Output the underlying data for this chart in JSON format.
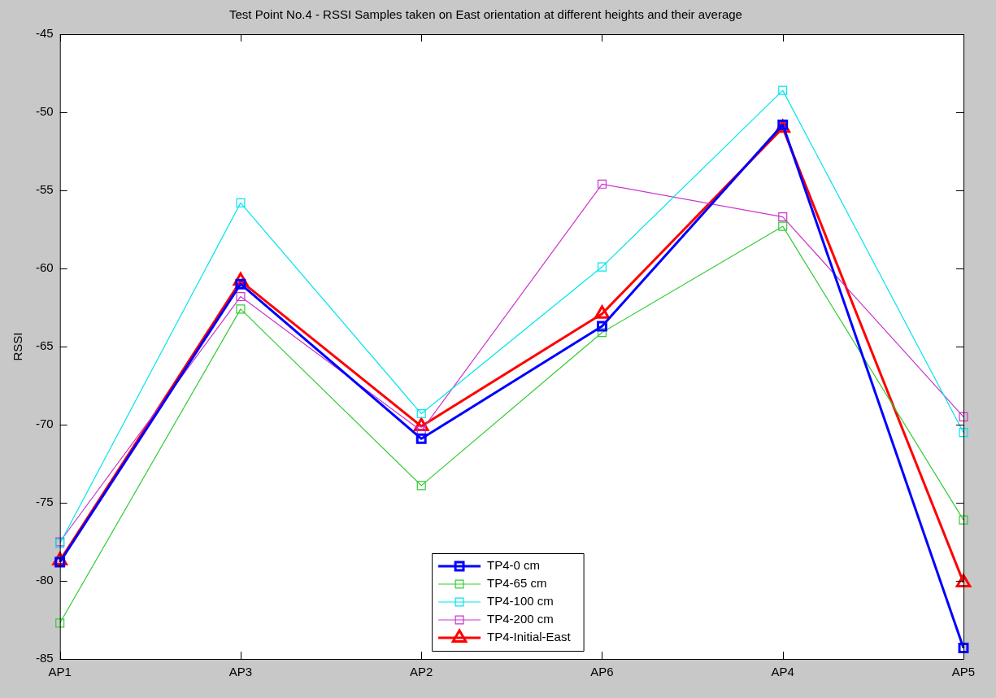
{
  "chart_data": {
    "type": "line",
    "title": "Test Point No.4 - RSSI Samples taken on East orientation at different heights and their average",
    "ylabel": "RSSI",
    "categories": [
      "AP1",
      "AP3",
      "AP2",
      "AP6",
      "AP4",
      "AP5"
    ],
    "ylim": [
      -85,
      -45
    ],
    "yticks": [
      -85,
      -80,
      -75,
      -70,
      -65,
      -60,
      -55,
      -50,
      -45
    ],
    "grid": false,
    "legend": "bottom",
    "line_style": "solid",
    "series": [
      {
        "name": "TP4-0 cm",
        "color": "#0000ff",
        "marker": "square",
        "values": [
          -78.8,
          -61.0,
          -70.9,
          -63.7,
          -50.8,
          -84.3
        ]
      },
      {
        "name": "TP4-65 cm",
        "color": "#33cc33",
        "marker": "square",
        "values": [
          -82.7,
          -62.6,
          -73.9,
          -64.1,
          -57.3,
          -76.1
        ]
      },
      {
        "name": "TP4-100 cm",
        "color": "#00e5ee",
        "marker": "square",
        "values": [
          -77.6,
          -55.8,
          -69.3,
          -59.9,
          -48.6,
          -70.5
        ]
      },
      {
        "name": "TP4-200 cm",
        "color": "#cc33cc",
        "marker": "square",
        "values": [
          -77.5,
          -61.8,
          -70.4,
          -54.6,
          -56.7,
          -69.5
        ]
      },
      {
        "name": "TP4-Initial-East",
        "color": "#ff0000",
        "marker": "triangle",
        "values": [
          -78.7,
          -60.8,
          -70.1,
          -62.9,
          -51.0,
          -80.1
        ]
      }
    ]
  }
}
